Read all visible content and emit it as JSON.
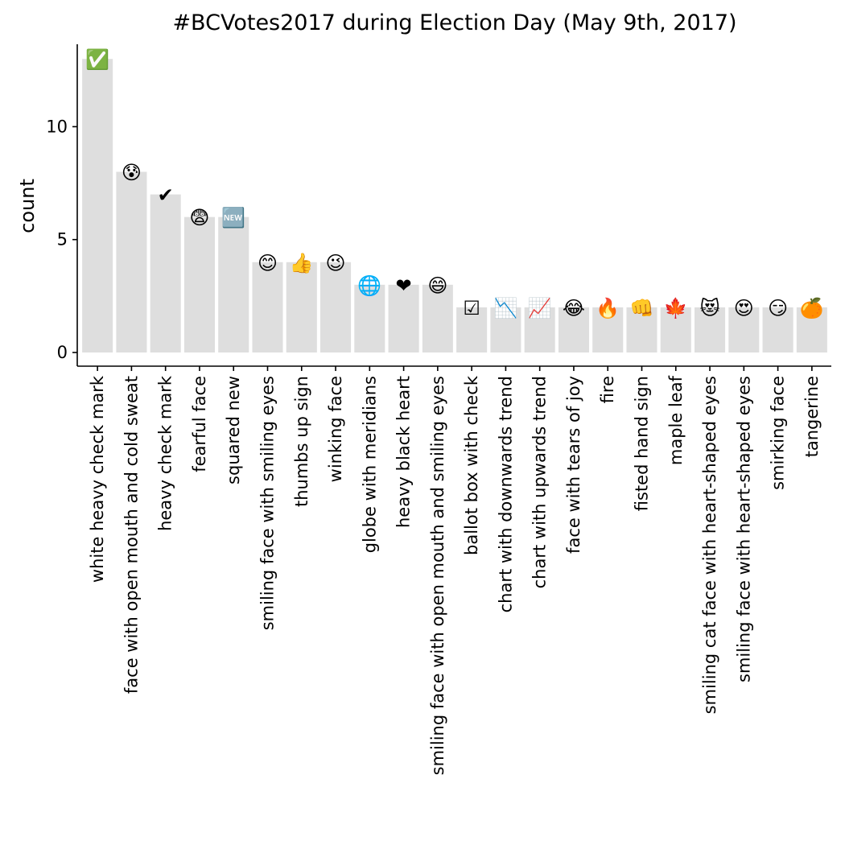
{
  "chart_data": {
    "type": "bar",
    "title": "#BCVotes2017 during Election Day (May 9th, 2017)",
    "xlabel": "",
    "ylabel": "count",
    "ylim": [
      0,
      13.65
    ],
    "yticks": [
      0,
      5,
      10
    ],
    "grid": false,
    "legend": "none",
    "colors": {
      "bar": "#dedede",
      "axis": "#000000"
    },
    "categories": [
      "white heavy check mark",
      "face with open mouth and cold sweat",
      "heavy check mark",
      "fearful face",
      "squared new",
      "smiling face with smiling eyes",
      "thumbs up sign",
      "winking face",
      "globe with meridians",
      "heavy black heart",
      "smiling face with open mouth and smiling eyes",
      "ballot box with check",
      "chart with downwards trend",
      "chart with upwards trend",
      "face with tears of joy",
      "fire",
      "fisted hand sign",
      "maple leaf",
      "smiling cat face with heart-shaped eyes",
      "smiling face with heart-shaped eyes",
      "smirking face",
      "tangerine"
    ],
    "values": [
      13,
      8,
      7,
      6,
      6,
      4,
      4,
      4,
      3,
      3,
      3,
      2,
      2,
      2,
      2,
      2,
      2,
      2,
      2,
      2,
      2,
      2
    ],
    "emojis": [
      "✅",
      "😰",
      "✔",
      "😨",
      "🆕",
      "😊",
      "👍",
      "😉",
      "🌐",
      "❤",
      "😄",
      "☑",
      "📉",
      "📈",
      "😂",
      "🔥",
      "👊",
      "🍁",
      "😻",
      "😍",
      "😏",
      "🍊"
    ]
  }
}
